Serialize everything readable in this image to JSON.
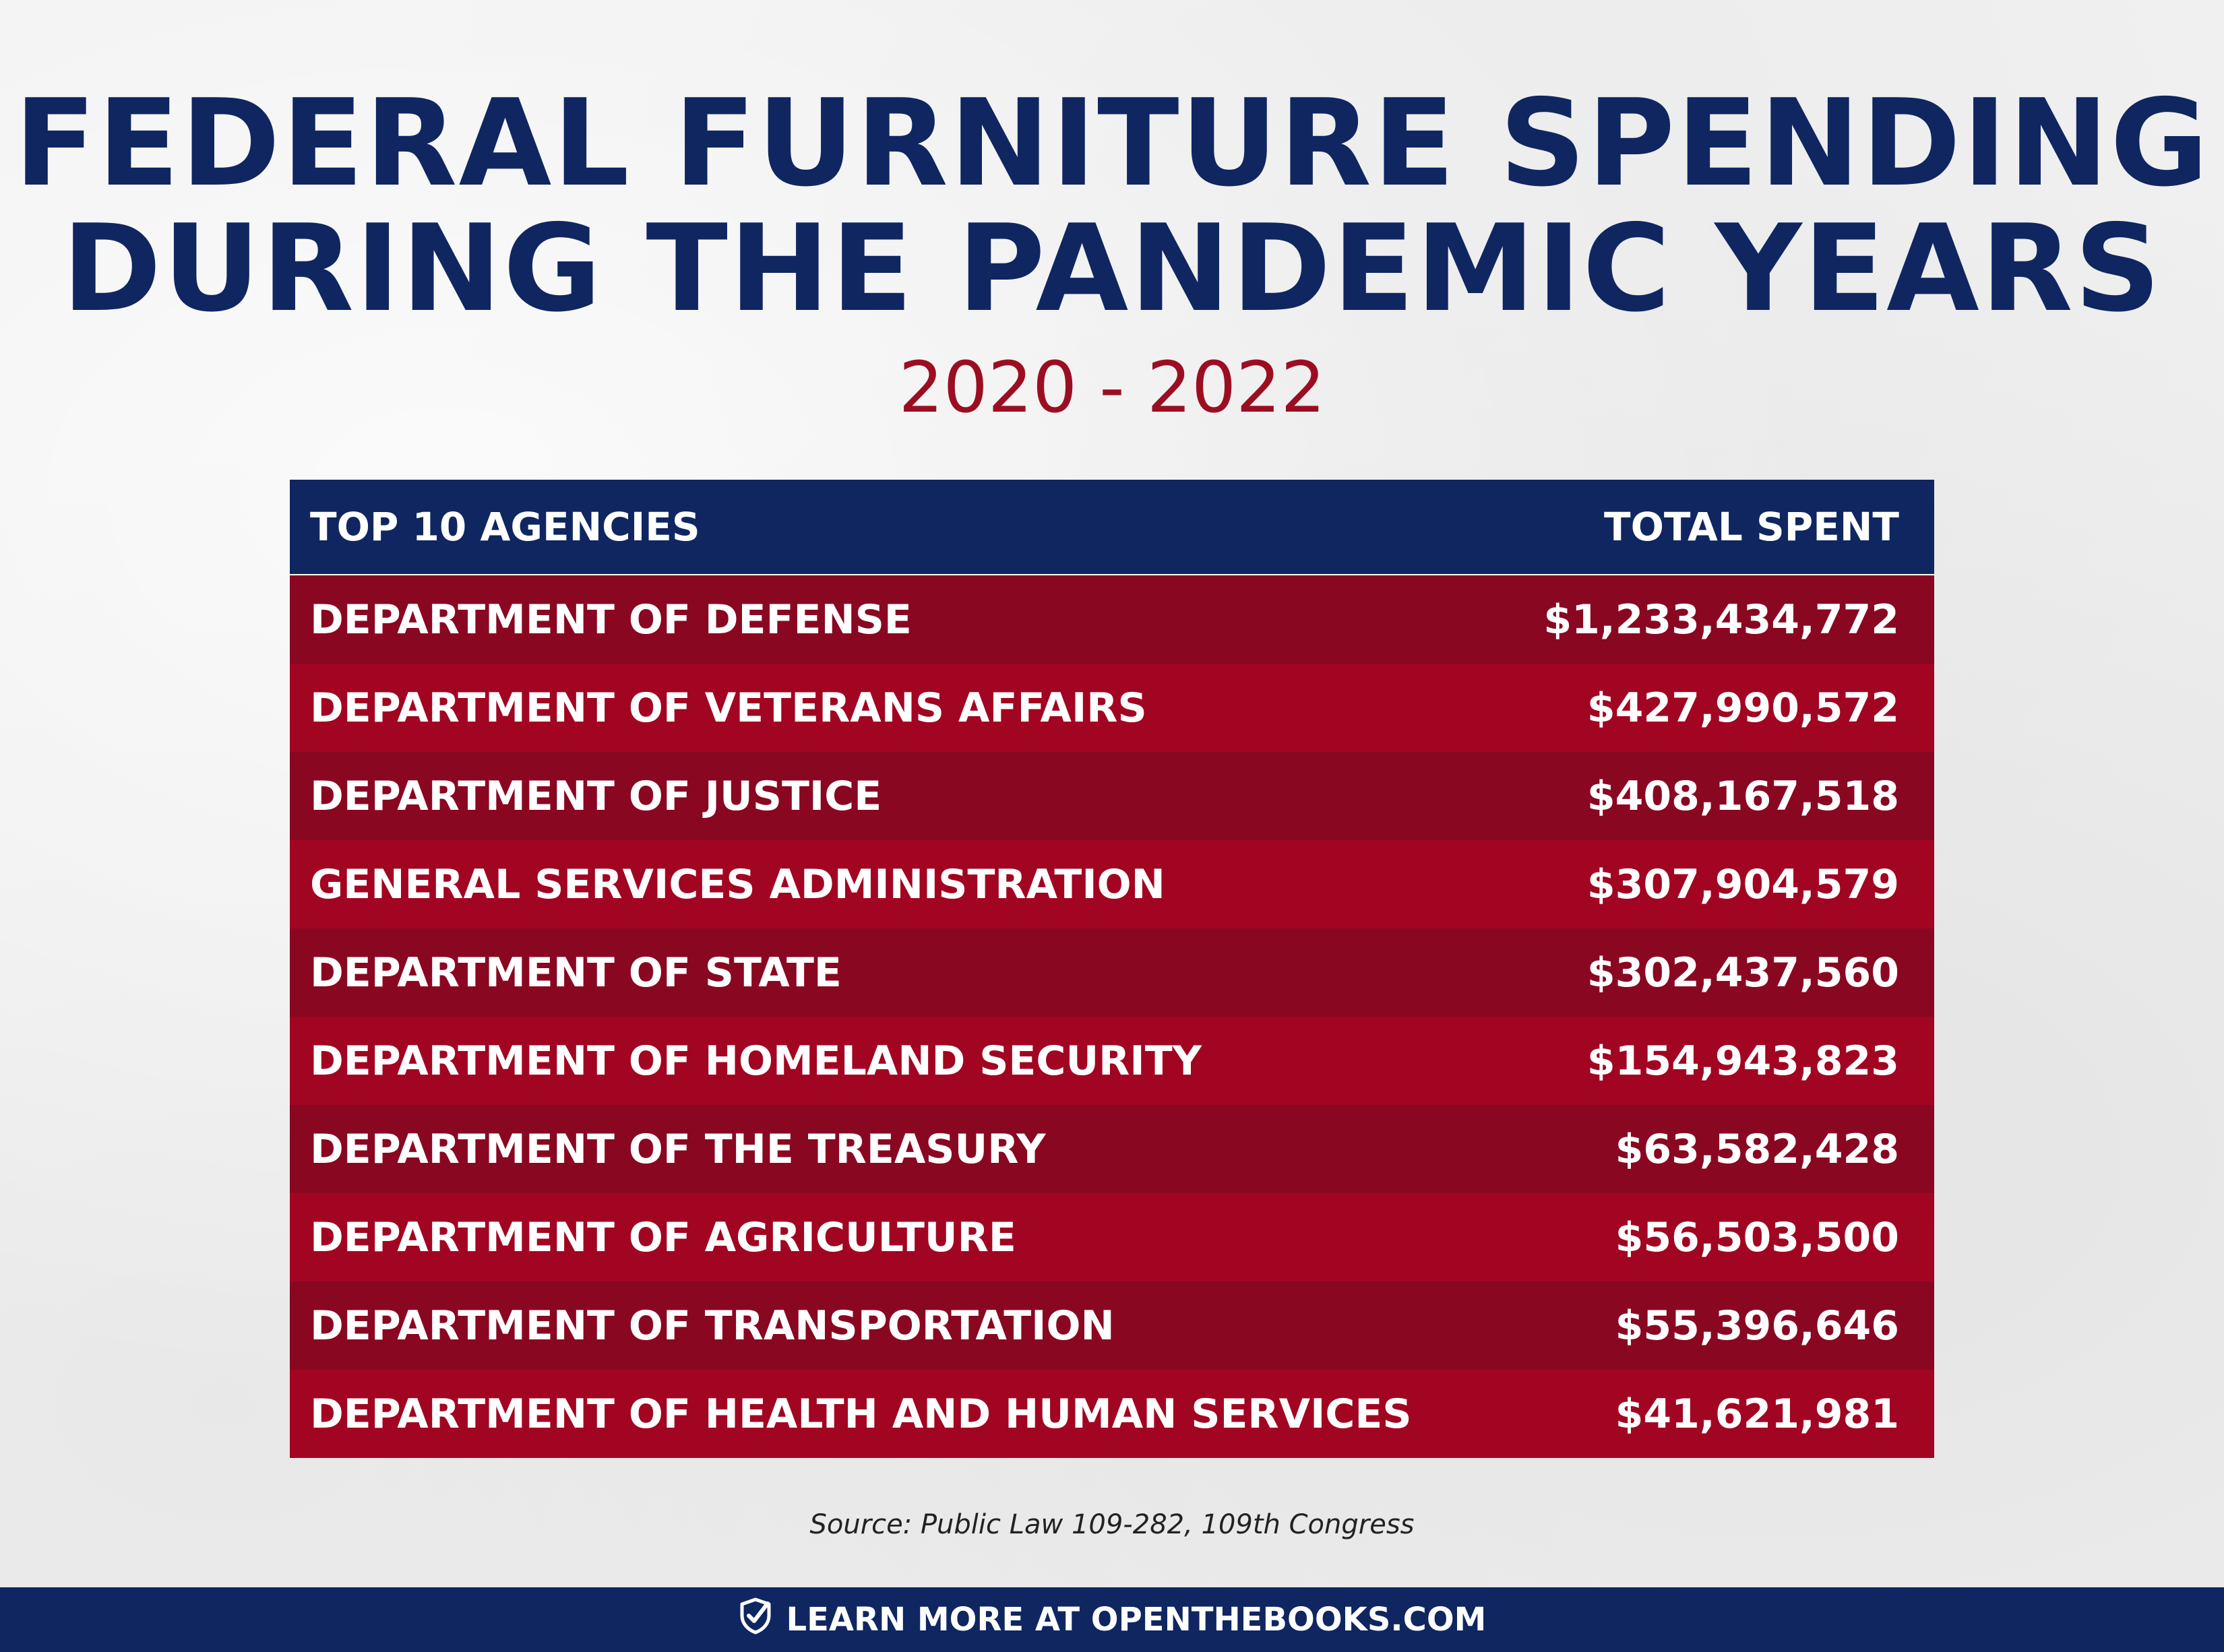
{
  "title": {
    "line1": "FEDERAL FURNITURE SPENDING",
    "line2": "DURING THE PANDEMIC YEARS"
  },
  "subtitle": "2020 - 2022",
  "table": {
    "header": {
      "agency": "TOP 10 AGENCIES",
      "spent": "TOTAL SPENT"
    },
    "rows": [
      {
        "agency": "DEPARTMENT OF DEFENSE",
        "spent": "$1,233,434,772"
      },
      {
        "agency": "DEPARTMENT OF VETERANS AFFAIRS",
        "spent": "$427,990,572"
      },
      {
        "agency": "DEPARTMENT OF JUSTICE",
        "spent": "$408,167,518"
      },
      {
        "agency": "GENERAL SERVICES ADMINISTRATION",
        "spent": "$307,904,579"
      },
      {
        "agency": "DEPARTMENT OF STATE",
        "spent": "$302,437,560"
      },
      {
        "agency": "DEPARTMENT OF HOMELAND SECURITY",
        "spent": "$154,943,823"
      },
      {
        "agency": "DEPARTMENT OF THE TREASURY",
        "spent": "$63,582,428"
      },
      {
        "agency": "DEPARTMENT OF AGRICULTURE",
        "spent": "$56,503,500"
      },
      {
        "agency": "DEPARTMENT OF TRANSPORTATION",
        "spent": "$55,396,646"
      },
      {
        "agency": "DEPARTMENT OF HEALTH AND HUMAN SERVICES",
        "spent": "$41,621,981"
      }
    ]
  },
  "source": "Source: Public Law 109-282, 109th Congress",
  "footer": {
    "text": "LEARN MORE AT OPENTHEBOOKS.COM",
    "icon": "shield-check-icon"
  },
  "colors": {
    "navy": "#0f2661",
    "red_dark": "#8a0722",
    "red_light": "#a20522",
    "subtitle_red": "#9b0e22"
  }
}
